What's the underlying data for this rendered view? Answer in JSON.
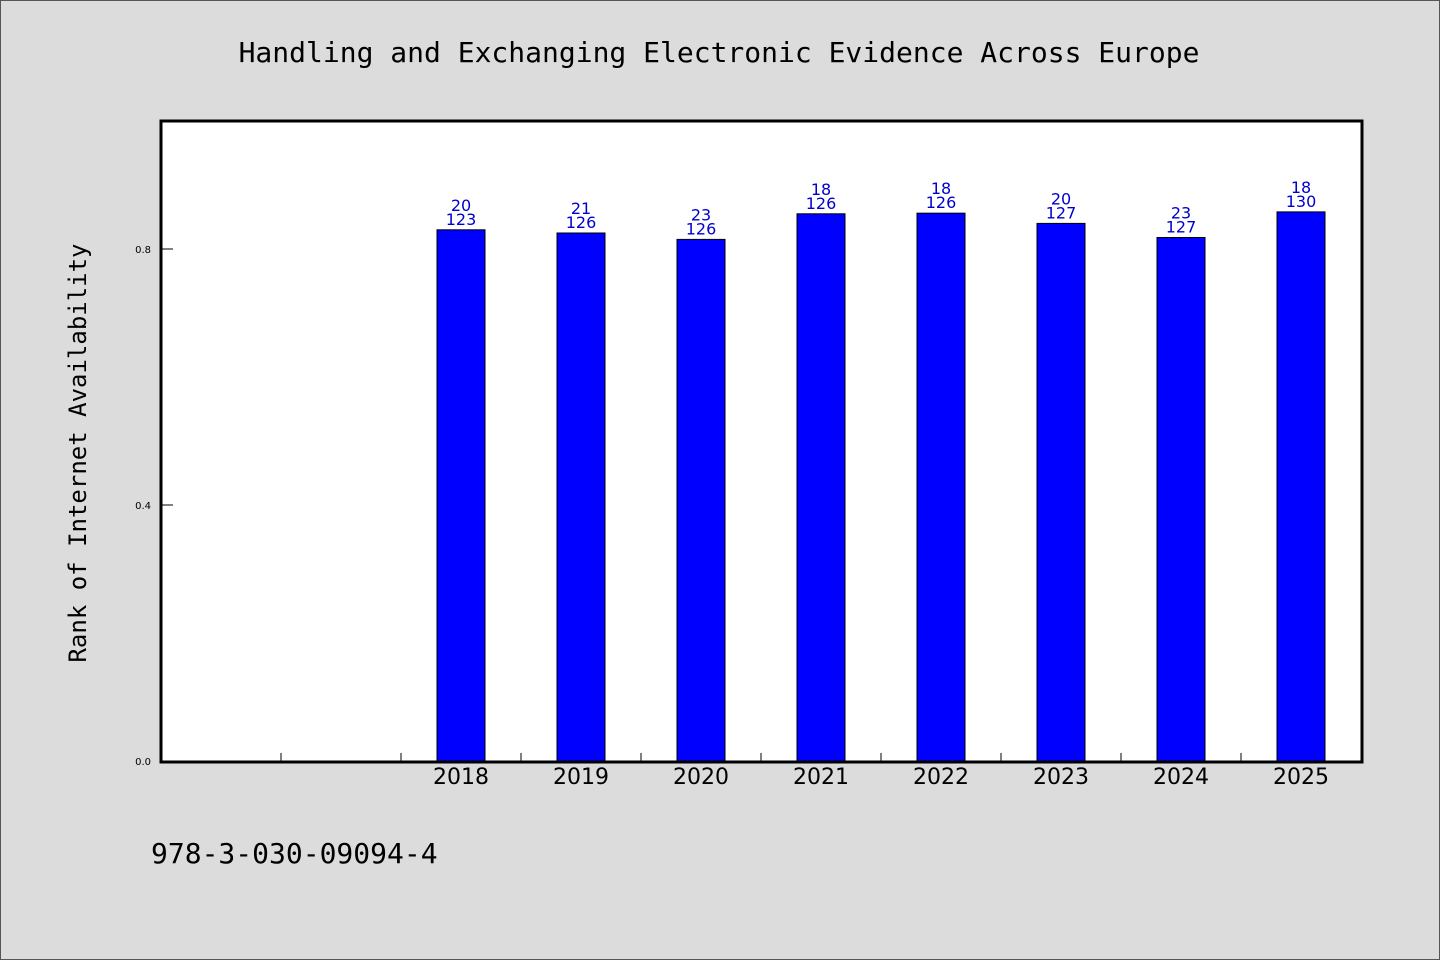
{
  "chart_data": {
    "type": "bar",
    "title": "Handling and Exchanging Electronic Evidence Across Europe",
    "xlabel": "",
    "ylabel": "Rank of Internet Availability",
    "categories": [
      "",
      "",
      "2018",
      "2019",
      "2020",
      "2021",
      "2022",
      "2023",
      "2024",
      "2025"
    ],
    "values": [
      null,
      null,
      0.83,
      0.825,
      0.815,
      0.855,
      0.856,
      0.84,
      0.818,
      0.858
    ],
    "bar_labels_top": [
      "",
      "",
      "20",
      "21",
      "23",
      "18",
      "18",
      "20",
      "23",
      "18"
    ],
    "bar_labels_bottom": [
      "",
      "",
      "123",
      "126",
      "126",
      "126",
      "126",
      "127",
      "127",
      "130"
    ],
    "yticks": [
      "0.0",
      "0.4",
      "0.8"
    ],
    "ytick_values": [
      0.0,
      0.4,
      0.8
    ],
    "ylim": [
      0.0,
      1.0
    ],
    "grid": false,
    "legend": "none",
    "colors": {
      "bar": "#0000ff",
      "bar_edge": "#000000",
      "label": "#0000cc",
      "plot_bg": "#ffffff",
      "page_bg": "#dcdcdc"
    }
  },
  "footer": {
    "isbn": "978-3-030-09094-4"
  }
}
